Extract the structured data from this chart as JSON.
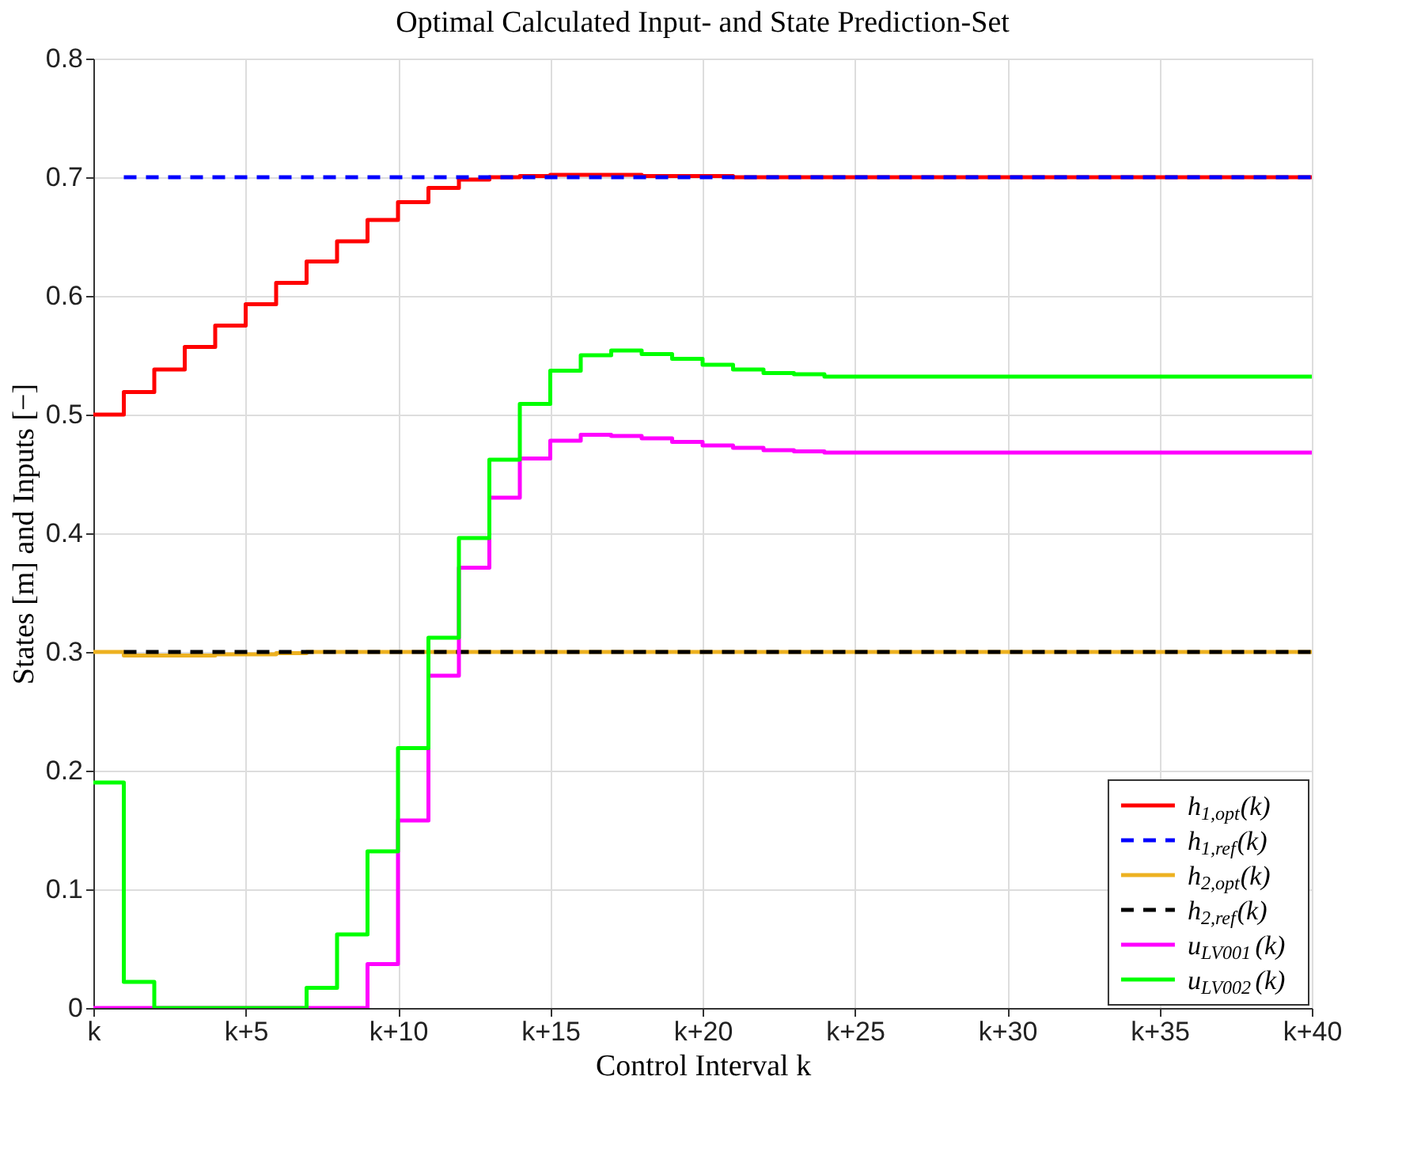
{
  "chart_data": {
    "type": "step",
    "title": "Optimal Calculated Input- and State Prediction-Set",
    "xlabel": "Control Interval k",
    "ylabel": "States [m] and Inputs [−]",
    "categories": [
      "k",
      null,
      null,
      null,
      null,
      "k+5",
      null,
      null,
      null,
      null,
      "k+10",
      null,
      null,
      null,
      null,
      "k+15",
      null,
      null,
      null,
      null,
      "k+20",
      null,
      null,
      null,
      null,
      "k+25",
      null,
      null,
      null,
      null,
      "k+30",
      null,
      null,
      null,
      null,
      "k+35",
      null,
      null,
      null,
      null,
      "k+40"
    ],
    "ylim": [
      0,
      0.8
    ],
    "yticks": [
      0,
      0.1,
      0.2,
      0.3,
      0.4,
      0.5,
      0.6,
      0.7,
      0.8
    ],
    "grid": true,
    "legend": "bottom right",
    "series": [
      {
        "name": "h$_{1,opt}$(k)",
        "color": "#ff0000",
        "line_style": "solid",
        "values": [
          0.5,
          0.519,
          0.538,
          0.557,
          0.575,
          0.593,
          0.611,
          0.629,
          0.646,
          0.664,
          0.679,
          0.691,
          0.698,
          0.7,
          0.701,
          0.702,
          0.702,
          0.702,
          0.701,
          0.701,
          0.701,
          0.7,
          0.7,
          0.7,
          0.7,
          0.7,
          0.7,
          0.7,
          0.7,
          0.7,
          0.7,
          0.7,
          0.7,
          0.7,
          0.7,
          0.7,
          0.7,
          0.7,
          0.7,
          0.7,
          0.7
        ]
      },
      {
        "name": "h$_{1,ref}$(k)",
        "color": "#0000ff",
        "type": "line",
        "line_style": "dashed",
        "values": [
          null,
          0.7,
          0.7,
          0.7,
          0.7,
          0.7,
          0.7,
          0.7,
          0.7,
          0.7,
          0.7,
          0.7,
          0.7,
          0.7,
          0.7,
          0.7,
          0.7,
          0.7,
          0.7,
          0.7,
          0.7,
          0.7,
          0.7,
          0.7,
          0.7,
          0.7,
          0.7,
          0.7,
          0.7,
          0.7,
          0.7,
          0.7,
          0.7,
          0.7,
          0.7,
          0.7,
          0.7,
          0.7,
          0.7,
          0.7,
          0.7
        ]
      },
      {
        "name": "h$_{2,opt}$(k)",
        "color": "#edb120",
        "line_style": "solid",
        "values": [
          0.3,
          0.297,
          0.297,
          0.297,
          0.298,
          0.298,
          0.299,
          0.3,
          0.3,
          0.3,
          0.3,
          0.3,
          0.3,
          0.3,
          0.3,
          0.3,
          0.3,
          0.3,
          0.3,
          0.3,
          0.3,
          0.3,
          0.3,
          0.3,
          0.3,
          0.3,
          0.3,
          0.3,
          0.3,
          0.3,
          0.3,
          0.3,
          0.3,
          0.3,
          0.3,
          0.3,
          0.3,
          0.3,
          0.3,
          0.3,
          0.3
        ]
      },
      {
        "name": "h$_{2,ref}$(k)",
        "color": "#000000",
        "type": "line",
        "line_style": "dashed",
        "values": [
          null,
          0.3,
          0.3,
          0.3,
          0.3,
          0.3,
          0.3,
          0.3,
          0.3,
          0.3,
          0.3,
          0.3,
          0.3,
          0.3,
          0.3,
          0.3,
          0.3,
          0.3,
          0.3,
          0.3,
          0.3,
          0.3,
          0.3,
          0.3,
          0.3,
          0.3,
          0.3,
          0.3,
          0.3,
          0.3,
          0.3,
          0.3,
          0.3,
          0.3,
          0.3,
          0.3,
          0.3,
          0.3,
          0.3,
          0.3,
          0.3
        ]
      },
      {
        "name": "u$_{LV001}$(k)",
        "color": "#ff00ff",
        "line_style": "solid",
        "values": [
          0,
          0,
          0,
          0,
          0,
          0,
          0,
          0,
          0,
          0.037,
          0.158,
          0.28,
          0.371,
          0.43,
          0.463,
          0.478,
          0.483,
          0.482,
          0.48,
          0.477,
          0.474,
          0.472,
          0.47,
          0.469,
          0.468,
          0.468,
          0.468,
          0.468,
          0.468,
          0.468,
          0.468,
          0.468,
          0.468,
          0.468,
          0.468,
          0.468,
          0.468,
          0.468,
          0.468,
          0.468,
          0.468
        ]
      },
      {
        "name": "u$_{LV002}$(k)",
        "color": "#00ff00",
        "line_style": "solid",
        "values": [
          0.19,
          0.022,
          0,
          0,
          0,
          0,
          0,
          0.017,
          0.062,
          0.132,
          0.219,
          0.312,
          0.396,
          0.462,
          0.509,
          0.537,
          0.55,
          0.554,
          0.551,
          0.547,
          0.542,
          0.538,
          0.535,
          0.534,
          0.532,
          0.532,
          0.532,
          0.532,
          0.532,
          0.532,
          0.532,
          0.532,
          0.532,
          0.532,
          0.532,
          0.532,
          0.532,
          0.532,
          0.532,
          0.532,
          0.532
        ]
      }
    ]
  }
}
